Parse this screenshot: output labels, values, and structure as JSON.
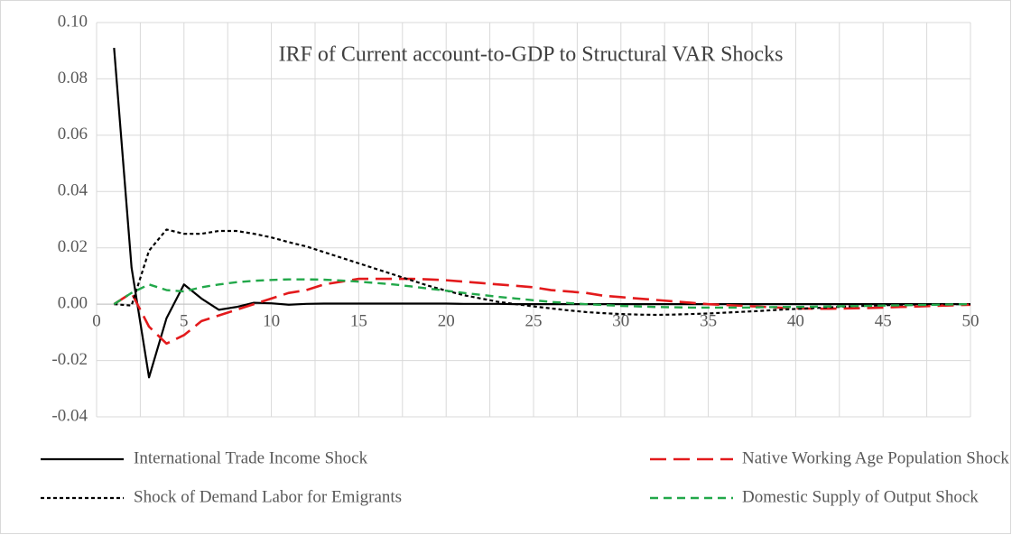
{
  "chart_data": {
    "type": "line",
    "title": "IRF of Current account-to-GDP to Structural VAR Shocks",
    "x": [
      1,
      2,
      3,
      4,
      5,
      6,
      7,
      8,
      9,
      10,
      11,
      12,
      13,
      14,
      15,
      16,
      17,
      18,
      19,
      20,
      21,
      22,
      23,
      24,
      25,
      26,
      27,
      28,
      29,
      30,
      31,
      32,
      33,
      34,
      35,
      36,
      37,
      38,
      39,
      40,
      41,
      42,
      43,
      44,
      45,
      46,
      47,
      48,
      49,
      50
    ],
    "xlim": [
      0,
      50
    ],
    "xticks": [
      0,
      5,
      10,
      15,
      20,
      25,
      30,
      35,
      40,
      45,
      50
    ],
    "ylim": [
      -0.04,
      0.1
    ],
    "yticks": [
      {
        "value": -0.04,
        "label": "-0.04"
      },
      {
        "value": -0.02,
        "label": "-0.02"
      },
      {
        "value": 0,
        "label": "0.00"
      },
      {
        "value": 0.02,
        "label": "0.02"
      },
      {
        "value": 0.04,
        "label": "0.04"
      },
      {
        "value": 0.06,
        "label": "0.06"
      },
      {
        "value": 0.08,
        "label": "0.08"
      },
      {
        "value": 0.1,
        "label": "0.10"
      }
    ],
    "grid": true,
    "legend": "bottom",
    "series": [
      {
        "name": "International Trade Income Shock",
        "color": "#000000",
        "dash": "solid",
        "values": [
          0.091,
          0.013,
          -0.026,
          -0.005,
          0.007,
          0.002,
          -0.002,
          -0.001,
          0.0005,
          0.0003,
          -0.0002,
          0.0001,
          0.0002,
          0.0002,
          0.0002,
          0.0002,
          0.0002,
          0.0002,
          0.0002,
          0.0002,
          0.0001,
          0.0001,
          0.0001,
          0,
          0,
          0,
          0,
          0,
          0,
          0,
          0,
          0,
          0,
          0,
          0,
          0,
          0,
          0,
          0,
          0,
          0,
          0,
          0,
          0,
          0,
          0,
          0,
          0,
          0,
          0
        ]
      },
      {
        "name": "Native Working Age Population Shock",
        "color": "#e31a1c",
        "dash": "long-dash",
        "values": [
          0,
          0.004,
          -0.008,
          -0.014,
          -0.011,
          -0.006,
          -0.004,
          -0.002,
          0,
          0.002,
          0.004,
          0.005,
          0.007,
          0.008,
          0.009,
          0.009,
          0.009,
          0.009,
          0.0088,
          0.0085,
          0.008,
          0.0075,
          0.007,
          0.0065,
          0.006,
          0.005,
          0.0045,
          0.004,
          0.003,
          0.0025,
          0.002,
          0.0015,
          0.001,
          0.0005,
          0,
          -0.0003,
          -0.0006,
          -0.0009,
          -0.0012,
          -0.0015,
          -0.0016,
          -0.0016,
          -0.0015,
          -0.0014,
          -0.0012,
          -0.001,
          -0.0008,
          -0.0006,
          -0.0004,
          -0.0002
        ]
      },
      {
        "name": "Shock of Demand Labor for Emigrants",
        "color": "#000000",
        "dash": "dot",
        "values": [
          0,
          -0.0005,
          0.019,
          0.0265,
          0.025,
          0.025,
          0.026,
          0.026,
          0.025,
          0.0237,
          0.022,
          0.0205,
          0.0185,
          0.0165,
          0.0145,
          0.0125,
          0.0105,
          0.0085,
          0.0065,
          0.0048,
          0.0032,
          0.002,
          0.0008,
          0,
          -0.0008,
          -0.0015,
          -0.0022,
          -0.0028,
          -0.0032,
          -0.0035,
          -0.0037,
          -0.0038,
          -0.0037,
          -0.0035,
          -0.0033,
          -0.003,
          -0.0027,
          -0.0024,
          -0.002,
          -0.0017,
          -0.0014,
          -0.0011,
          -0.0008,
          -0.0006,
          -0.0004,
          -0.0002,
          -0.0001,
          0,
          0,
          0
        ]
      },
      {
        "name": "Domestic Supply of Output Shock",
        "color": "#22a84a",
        "dash": "dash",
        "values": [
          0,
          0.004,
          0.007,
          0.005,
          0.0045,
          0.006,
          0.007,
          0.0078,
          0.0083,
          0.0086,
          0.0088,
          0.0088,
          0.0087,
          0.0084,
          0.008,
          0.0075,
          0.007,
          0.0063,
          0.0055,
          0.0048,
          0.004,
          0.0033,
          0.0026,
          0.002,
          0.0014,
          0.0008,
          0.0004,
          0,
          -0.0003,
          -0.0006,
          -0.0008,
          -0.001,
          -0.0011,
          -0.0012,
          -0.0012,
          -0.0012,
          -0.0012,
          -0.0011,
          -0.001,
          -0.001,
          -0.0009,
          -0.0008,
          -0.0007,
          -0.0006,
          -0.0005,
          -0.0004,
          -0.0003,
          -0.0002,
          -0.0001,
          0
        ]
      }
    ]
  }
}
